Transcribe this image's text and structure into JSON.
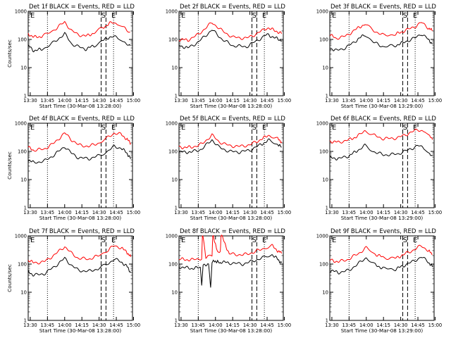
{
  "figure": {
    "background": "#ffffff"
  },
  "chart_data": [
    {
      "type": "line",
      "title": "Det 1f BLACK = Events, RED = LLD",
      "xlabel": "Start Time (30-Mar-08 13:28:00)",
      "ylabel": "Counts/sec",
      "xticks": [
        "13:30",
        "13:45",
        "14:00",
        "14:15",
        "14:30",
        "14:45",
        "15:00"
      ],
      "yscale": "log",
      "ylim": [
        1,
        1000
      ],
      "yticks": [
        "1",
        "10",
        "100",
        "1000"
      ],
      "markers": [
        "E",
        "S",
        "E"
      ],
      "series": [
        {
          "name": "RED",
          "color": "#ff0000",
          "x": [
            13.47,
            13.55,
            13.68,
            13.85,
            14.0,
            14.1,
            14.2,
            14.3,
            14.43,
            14.55,
            14.68,
            14.78,
            14.85,
            14.9,
            14.95
          ],
          "y": [
            160,
            120,
            130,
            220,
            420,
            200,
            150,
            130,
            170,
            260,
            400,
            360,
            280,
            200,
            180
          ]
        },
        {
          "name": "BLACK",
          "color": "#000000",
          "x": [
            13.47,
            13.55,
            13.68,
            13.85,
            14.0,
            14.1,
            14.2,
            14.3,
            14.43,
            14.55,
            14.68,
            14.78,
            14.85,
            14.9,
            14.95
          ],
          "y": [
            60,
            40,
            45,
            80,
            160,
            70,
            55,
            45,
            60,
            90,
            130,
            110,
            90,
            70,
            60
          ]
        }
      ]
    },
    {
      "type": "line",
      "title": "Det 2f BLACK = Events, RED = LLD",
      "xlabel": "Start Time (30-Mar-08 13:28:00)",
      "ylabel": "",
      "xticks": [
        "13:30",
        "13:45",
        "14:00",
        "14:15",
        "14:30",
        "14:45",
        "15:00"
      ],
      "yscale": "log",
      "ylim": [
        1,
        1000
      ],
      "yticks": [
        "1",
        "10",
        "100",
        "1000"
      ],
      "markers": [
        "E",
        "S",
        "E"
      ],
      "series": [
        {
          "name": "RED",
          "color": "#ff0000",
          "x": [
            13.47,
            13.6,
            13.75,
            13.95,
            14.1,
            14.25,
            14.45,
            14.6,
            14.75,
            14.88,
            14.96
          ],
          "y": [
            100,
            95,
            150,
            400,
            200,
            120,
            110,
            160,
            260,
            200,
            160
          ]
        },
        {
          "name": "BLACK",
          "color": "#000000",
          "x": [
            13.47,
            13.6,
            13.75,
            13.95,
            14.1,
            14.25,
            14.45,
            14.6,
            14.75,
            14.88,
            14.96
          ],
          "y": [
            60,
            50,
            80,
            220,
            100,
            60,
            55,
            90,
            150,
            110,
            90
          ]
        }
      ]
    },
    {
      "type": "line",
      "title": "Det 3f BLACK = Events, RED = LLD",
      "xlabel": "Start Time (30-Mar-08 13:29:00)",
      "ylabel": "",
      "xticks": [
        "13:30",
        "13:45",
        "14:00",
        "14:15",
        "14:30",
        "14:45",
        "15:00"
      ],
      "yscale": "log",
      "ylim": [
        1,
        1000
      ],
      "yticks": [
        "1",
        "10",
        "100",
        "1000"
      ],
      "markers": [
        "E",
        "S",
        "E"
      ],
      "series": [
        {
          "name": "RED",
          "color": "#ff0000",
          "x": [
            13.47,
            13.55,
            13.7,
            13.85,
            13.98,
            14.1,
            14.25,
            14.42,
            14.55,
            14.7,
            14.8,
            14.9,
            14.96
          ],
          "y": [
            150,
            110,
            130,
            230,
            350,
            210,
            140,
            150,
            200,
            280,
            400,
            260,
            200
          ]
        },
        {
          "name": "BLACK",
          "color": "#000000",
          "x": [
            13.47,
            13.55,
            13.7,
            13.85,
            13.98,
            14.1,
            14.25,
            14.42,
            14.55,
            14.7,
            14.8,
            14.9,
            14.96
          ],
          "y": [
            50,
            40,
            50,
            90,
            150,
            80,
            55,
            60,
            80,
            110,
            160,
            100,
            70
          ]
        }
      ]
    },
    {
      "type": "line",
      "title": "Det 4f BLACK = Events, RED = LLD",
      "xlabel": "Start Time (30-Mar-08 13:28:00)",
      "ylabel": "Counts/sec",
      "xticks": [
        "13:30",
        "13:45",
        "14:00",
        "14:15",
        "14:30",
        "14:45",
        "15:00"
      ],
      "yscale": "log",
      "ylim": [
        1,
        1000
      ],
      "yticks": [
        "1",
        "10",
        "100",
        "1000"
      ],
      "markers": [
        "E",
        "S",
        "E"
      ],
      "series": [
        {
          "name": "RED",
          "color": "#ff0000",
          "x": [
            13.47,
            13.55,
            13.7,
            13.85,
            14.0,
            14.1,
            14.2,
            14.35,
            14.5,
            14.62,
            14.72,
            14.82,
            14.9,
            14.96
          ],
          "y": [
            140,
            110,
            120,
            200,
            450,
            260,
            170,
            150,
            200,
            300,
            450,
            400,
            280,
            190
          ]
        },
        {
          "name": "BLACK",
          "color": "#000000",
          "x": [
            13.47,
            13.55,
            13.7,
            13.85,
            14.0,
            14.1,
            14.2,
            14.35,
            14.5,
            14.62,
            14.72,
            14.82,
            14.9,
            14.96
          ],
          "y": [
            50,
            40,
            45,
            75,
            150,
            85,
            60,
            55,
            70,
            100,
            150,
            130,
            90,
            55
          ]
        }
      ]
    },
    {
      "type": "line",
      "title": "Det 5f BLACK = Events, RED = LLD",
      "xlabel": "Start Time (30-Mar-08 13:28:00)",
      "ylabel": "",
      "xticks": [
        "13:30",
        "13:45",
        "14:00",
        "14:15",
        "14:30",
        "14:45",
        "15:00"
      ],
      "yscale": "log",
      "ylim": [
        1,
        1000
      ],
      "yticks": [
        "1",
        "10",
        "100",
        "1000"
      ],
      "markers": [
        "E",
        "S",
        "E"
      ],
      "series": [
        {
          "name": "RED",
          "color": "#ff0000",
          "x": [
            13.47,
            13.65,
            13.8,
            13.95,
            14.05,
            14.2,
            14.35,
            14.5,
            14.65,
            14.78,
            14.9,
            14.96
          ],
          "y": [
            140,
            140,
            180,
            380,
            220,
            160,
            150,
            170,
            260,
            380,
            280,
            220
          ]
        },
        {
          "name": "BLACK",
          "color": "#000000",
          "x": [
            13.47,
            13.65,
            13.8,
            13.95,
            14.05,
            14.2,
            14.35,
            14.5,
            14.65,
            14.78,
            14.9,
            14.96
          ],
          "y": [
            95,
            95,
            120,
            260,
            140,
            100,
            95,
            110,
            170,
            250,
            180,
            140
          ]
        }
      ]
    },
    {
      "type": "line",
      "title": "Det 6f BLACK = Events, RED = LLD",
      "xlabel": "Start Time (30-Mar-08 13:29:00)",
      "ylabel": "",
      "xticks": [
        "13:30",
        "13:45",
        "14:00",
        "14:15",
        "14:30",
        "14:45",
        "15:00"
      ],
      "yscale": "log",
      "ylim": [
        1,
        1000
      ],
      "yticks": [
        "1",
        "10",
        "100",
        "1000"
      ],
      "markers": [
        "E",
        "S",
        "E"
      ],
      "series": [
        {
          "name": "RED",
          "color": "#ff0000",
          "x": [
            13.47,
            13.6,
            13.75,
            13.88,
            13.98,
            14.1,
            14.25,
            14.45,
            14.6,
            14.75,
            14.85,
            14.92,
            14.96
          ],
          "y": [
            230,
            210,
            260,
            350,
            550,
            380,
            280,
            300,
            420,
            600,
            500,
            350,
            260
          ]
        },
        {
          "name": "BLACK",
          "color": "#000000",
          "x": [
            13.47,
            13.6,
            13.75,
            13.88,
            13.98,
            14.1,
            14.25,
            14.45,
            14.6,
            14.75,
            14.85,
            14.92,
            14.96
          ],
          "y": [
            60,
            55,
            70,
            110,
            160,
            100,
            75,
            80,
            110,
            160,
            130,
            90,
            70
          ]
        }
      ]
    },
    {
      "type": "line",
      "title": "Det 7f BLACK = Events, RED = LLD",
      "xlabel": "Start Time (30-Mar-08 13:28:00)",
      "ylabel": "Counts/sec",
      "xticks": [
        "13:30",
        "13:45",
        "14:00",
        "14:15",
        "14:30",
        "14:45",
        "15:00"
      ],
      "yscale": "log",
      "ylim": [
        1,
        1000
      ],
      "yticks": [
        "1",
        "10",
        "100",
        "1000"
      ],
      "markers": [
        "E",
        "S",
        "E"
      ],
      "series": [
        {
          "name": "RED",
          "color": "#ff0000",
          "x": [
            13.47,
            13.55,
            13.7,
            13.85,
            14.0,
            14.1,
            14.2,
            14.35,
            14.5,
            14.62,
            14.72,
            14.82,
            14.9,
            14.96
          ],
          "y": [
            140,
            110,
            120,
            210,
            420,
            240,
            160,
            150,
            200,
            300,
            450,
            380,
            270,
            180
          ]
        },
        {
          "name": "BLACK",
          "color": "#000000",
          "x": [
            13.47,
            13.55,
            13.7,
            13.85,
            14.0,
            14.1,
            14.2,
            14.35,
            14.5,
            14.62,
            14.72,
            14.82,
            14.9,
            14.96
          ],
          "y": [
            55,
            40,
            45,
            80,
            160,
            90,
            60,
            55,
            70,
            100,
            150,
            120,
            85,
            50
          ]
        }
      ]
    },
    {
      "type": "line",
      "title": "Det 8f BLACK = Events, RED = LLD",
      "xlabel": "Start Time (30-Mar-08 13:28:00)",
      "ylabel": "",
      "xticks": [
        "13:30",
        "13:45",
        "14:00",
        "14:15",
        "14:30",
        "14:45",
        "15:00"
      ],
      "yscale": "log",
      "ylim": [
        1,
        1000
      ],
      "yticks": [
        "1",
        "10",
        "100",
        "1000"
      ],
      "markers": [
        "E",
        "S",
        "E"
      ],
      "series": [
        {
          "name": "RED",
          "color": "#ff0000",
          "x": [
            13.47,
            13.65,
            13.8,
            13.81,
            13.82,
            13.86,
            13.9,
            13.95,
            13.96,
            13.97,
            14.03,
            14.07,
            14.08,
            14.09,
            14.2,
            14.4,
            14.55,
            14.7,
            14.82,
            14.9,
            14.96
          ],
          "y": [
            150,
            140,
            160,
            1000,
            1000,
            180,
            190,
            220,
            1000,
            1000,
            250,
            260,
            1000,
            1000,
            230,
            210,
            260,
            360,
            450,
            300,
            240
          ]
        },
        {
          "name": "BLACK",
          "color": "#000000",
          "x": [
            13.47,
            13.65,
            13.78,
            13.8,
            13.82,
            13.86,
            13.9,
            13.93,
            13.95,
            13.97,
            14.03,
            14.07,
            14.2,
            14.4,
            14.55,
            14.7,
            14.82,
            14.9,
            14.96
          ],
          "y": [
            80,
            70,
            75,
            18,
            90,
            85,
            95,
            14,
            110,
            120,
            130,
            120,
            110,
            100,
            130,
            170,
            220,
            150,
            110
          ]
        }
      ]
    },
    {
      "type": "line",
      "title": "Det 9f BLACK = Events, RED = LLD",
      "xlabel": "Start Time (30-Mar-08 13:29:00)",
      "ylabel": "",
      "xticks": [
        "13:30",
        "13:45",
        "14:00",
        "14:15",
        "14:30",
        "14:45",
        "15:00"
      ],
      "yscale": "log",
      "ylim": [
        1,
        1000
      ],
      "yticks": [
        "1",
        "10",
        "100",
        "1000"
      ],
      "markers": [
        "E",
        "S",
        "E"
      ],
      "series": [
        {
          "name": "RED",
          "color": "#ff0000",
          "x": [
            13.47,
            13.6,
            13.75,
            13.9,
            14.0,
            14.12,
            14.25,
            14.42,
            14.55,
            14.7,
            14.8,
            14.9,
            14.96
          ],
          "y": [
            140,
            120,
            150,
            250,
            380,
            230,
            170,
            160,
            220,
            330,
            450,
            300,
            220
          ]
        },
        {
          "name": "BLACK",
          "color": "#000000",
          "x": [
            13.47,
            13.6,
            13.75,
            13.9,
            14.0,
            14.12,
            14.25,
            14.42,
            14.55,
            14.7,
            14.8,
            14.9,
            14.96
          ],
          "y": [
            60,
            50,
            60,
            110,
            170,
            95,
            70,
            65,
            90,
            130,
            180,
            120,
            80
          ]
        }
      ]
    }
  ]
}
